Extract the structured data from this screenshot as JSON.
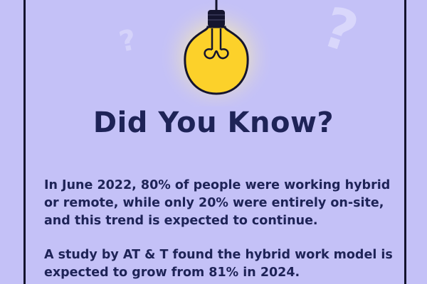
{
  "title": "Did You Know?",
  "paragraphs": [
    "In June 2022, 80% of people were working hybrid or remote, while only 20% were entirely on-site, and this trend is expected to continue.",
    "A study by AT & T found the hybrid work model is expected to grow from 81% in 2024."
  ],
  "icons": [
    "lightbulb-icon",
    "question-mark-icon"
  ],
  "colors": {
    "background": "#c4c1f7",
    "text": "#1e2357",
    "bulb": "#fcd12a",
    "glow": "#fff6b3",
    "frame": "#14142e"
  }
}
